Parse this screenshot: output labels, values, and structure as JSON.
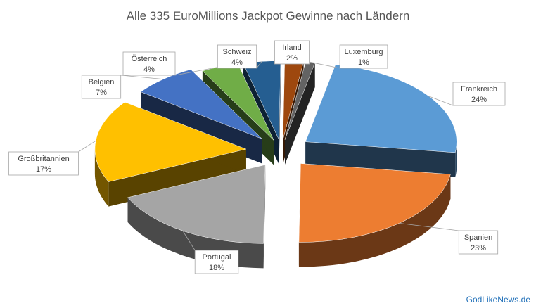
{
  "chart_data": {
    "type": "pie",
    "title": "Alle 335 EuroMillions Jackpot Gewinne nach Ländern",
    "slices": [
      {
        "label": "Frankreich",
        "value": 24,
        "value_label": "24%",
        "color": "#5b9bd5"
      },
      {
        "label": "Spanien",
        "value": 23,
        "value_label": "23%",
        "color": "#ed7d31"
      },
      {
        "label": "Portugal",
        "value": 18,
        "value_label": "18%",
        "color": "#a5a5a5"
      },
      {
        "label": "Großbritannien",
        "value": 17,
        "value_label": "17%",
        "color": "#ffc000"
      },
      {
        "label": "Belgien",
        "value": 7,
        "value_label": "7%",
        "color": "#4472c4"
      },
      {
        "label": "Österreich",
        "value": 4,
        "value_label": "4%",
        "color": "#70ad47"
      },
      {
        "label": "Schweiz",
        "value": 4,
        "value_label": "4%",
        "color": "#255e91"
      },
      {
        "label": "Irland",
        "value": 2,
        "value_label": "2%",
        "color": "#9e480e"
      },
      {
        "label": "Luxemburg",
        "value": 1,
        "value_label": "1%",
        "color": "#636363"
      }
    ],
    "exploded": true,
    "three_d": true
  },
  "footer": {
    "credit": "GodLikeNews.de"
  }
}
